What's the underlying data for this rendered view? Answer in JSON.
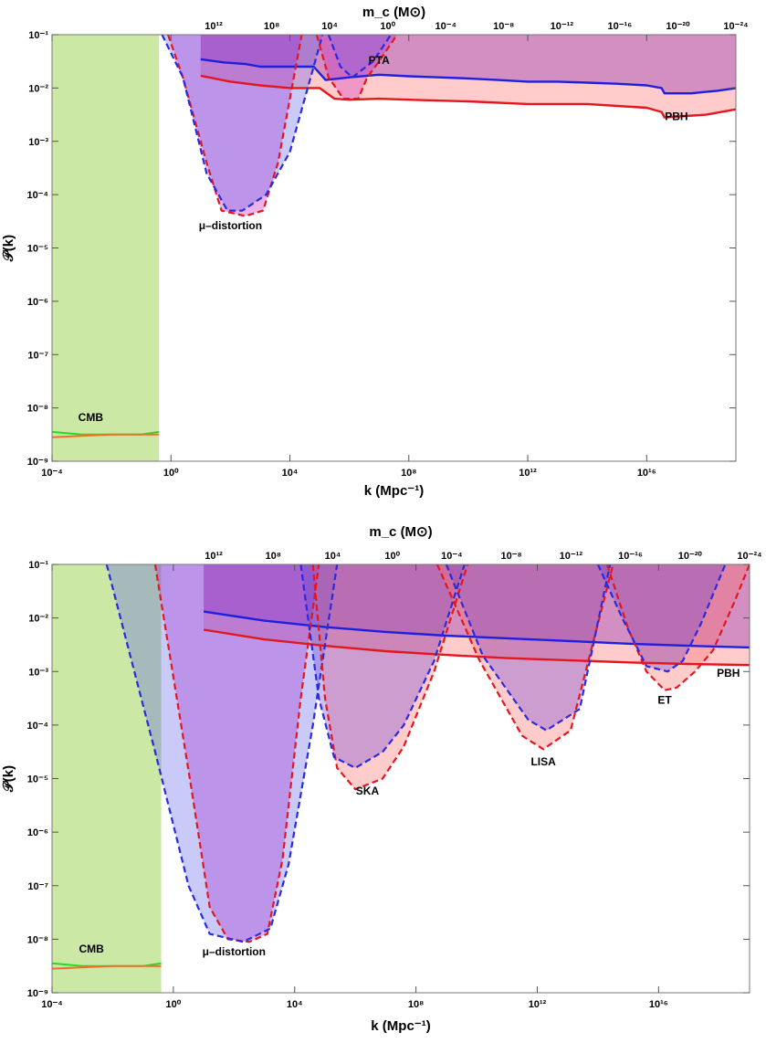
{
  "chart_data": [
    {
      "type": "area",
      "xlabel": "k (Mpc⁻¹)",
      "ylabel": "𝒫(k)",
      "top_xlabel": "m_c (M⊙)",
      "xscale": "log",
      "yscale": "log",
      "xlim": [
        -4,
        19
      ],
      "ylim": [
        -9,
        -1
      ],
      "x_ticks": [
        "10⁻⁴",
        "10⁰",
        "10⁴",
        "10⁸",
        "10¹²",
        "10¹⁶"
      ],
      "y_ticks": [
        "10⁻⁹",
        "10⁻⁸",
        "10⁻⁷",
        "10⁻⁶",
        "10⁻⁵",
        "10⁻⁴",
        "10⁻³",
        "10⁻²",
        "10⁻¹"
      ],
      "top_ticks": [
        "10¹²",
        "10⁸",
        "10⁴",
        "10⁰",
        "10⁻⁴",
        "10⁻⁸",
        "10⁻¹²",
        "10⁻¹⁶",
        "10⁻²⁰",
        "10⁻²⁴"
      ],
      "annotations": [
        "CMB",
        "μ–distortion",
        "PTA",
        "PBH"
      ],
      "cmb_region_log10k": [
        -4,
        -0.4
      ],
      "series": [
        {
          "role": "blue_pbh",
          "x": [
            1,
            1.8,
            2.5,
            3,
            3.6,
            4.8,
            5.2,
            6,
            7,
            8,
            9,
            10,
            11,
            12,
            13,
            14,
            15,
            16,
            16.5,
            16.6,
            17.5,
            18.4,
            19
          ],
          "y": [
            -1.46,
            -1.52,
            -1.55,
            -1.6,
            -1.6,
            -1.6,
            -1.85,
            -1.8,
            -1.75,
            -1.78,
            -1.8,
            -1.82,
            -1.85,
            -1.88,
            -1.88,
            -1.9,
            -1.92,
            -1.95,
            -2.0,
            -2.1,
            -2.1,
            -2.05,
            -2.0
          ]
        },
        {
          "role": "red_pbh",
          "x": [
            1,
            2,
            3,
            4,
            5,
            5.5,
            6,
            7,
            8,
            10,
            12,
            14,
            16,
            16.5,
            16.6,
            18,
            19
          ],
          "y": [
            -1.77,
            -1.88,
            -1.95,
            -2.0,
            -2.0,
            -2.2,
            -2.22,
            -2.2,
            -2.22,
            -2.25,
            -2.3,
            -2.3,
            -2.37,
            -2.45,
            -2.55,
            -2.5,
            -2.4
          ]
        },
        {
          "role": "mu_red",
          "x": [
            -0.1,
            0.4,
            1.2,
            1.7,
            2.5,
            3.1,
            3.6,
            4.4
          ],
          "y": [
            -1,
            -1.8,
            -3.4,
            -4.3,
            -4.4,
            -4.3,
            -3.4,
            -1
          ]
        },
        {
          "role": "mu_blue",
          "x": [
            -0.3,
            0.4,
            1.2,
            1.9,
            2.4,
            3.2,
            4.0,
            5.1
          ],
          "y": [
            -1,
            -1.8,
            -3.6,
            -4.3,
            -4.3,
            -4.0,
            -3.2,
            -1
          ]
        },
        {
          "role": "pta_red",
          "x": [
            4.9,
            5.3,
            5.8,
            6.3,
            6.6,
            7.0,
            7.6
          ],
          "y": [
            -1,
            -1.8,
            -2.2,
            -2.2,
            -1.8,
            -1.5,
            -1
          ]
        },
        {
          "role": "pta_blue",
          "x": [
            5.3,
            5.7,
            6.1,
            6.8,
            7.4
          ],
          "y": [
            -1,
            -1.6,
            -1.8,
            -1.5,
            -1
          ]
        },
        {
          "role": "cmb_green",
          "x": [
            -4,
            -3,
            -2,
            -1,
            -0.4
          ],
          "y": [
            -8.45,
            -8.5,
            -8.5,
            -8.5,
            -8.45
          ]
        },
        {
          "role": "cmb_orange",
          "x": [
            -4,
            -2,
            -0.4
          ],
          "y": [
            -8.55,
            -8.5,
            -8.5
          ]
        }
      ]
    },
    {
      "type": "area",
      "xlabel": "k (Mpc⁻¹)",
      "ylabel": "𝒫(k)",
      "top_xlabel": "m_c (M⊙)",
      "xscale": "log",
      "yscale": "log",
      "xlim": [
        -4,
        19
      ],
      "ylim": [
        -9,
        -1
      ],
      "x_ticks": [
        "10⁻⁴",
        "10⁰",
        "10⁴",
        "10⁸",
        "10¹²",
        "10¹⁶"
      ],
      "y_ticks": [
        "10⁻⁹",
        "10⁻⁸",
        "10⁻⁷",
        "10⁻⁶",
        "10⁻⁵",
        "10⁻⁴",
        "10⁻³",
        "10⁻²",
        "10⁻¹"
      ],
      "top_ticks": [
        "10¹²",
        "10⁸",
        "10⁴",
        "10⁰",
        "10⁻⁴",
        "10⁻⁸",
        "10⁻¹²",
        "10⁻¹⁶",
        "10⁻²⁰",
        "10⁻²⁴"
      ],
      "annotations": [
        "CMB",
        "μ–distortion",
        "SKA",
        "LISA",
        "ET",
        "PBH"
      ],
      "cmb_region_log10k": [
        -4,
        -0.4
      ],
      "series": [
        {
          "role": "blue_pbh",
          "x": [
            1,
            3,
            5,
            7,
            9,
            11,
            13,
            15,
            17,
            19
          ],
          "y": [
            -1.88,
            -2.05,
            -2.17,
            -2.26,
            -2.33,
            -2.38,
            -2.43,
            -2.48,
            -2.52,
            -2.55
          ]
        },
        {
          "role": "red_pbh",
          "x": [
            1,
            3,
            5,
            7,
            9,
            11,
            13,
            15,
            17,
            19
          ],
          "y": [
            -2.22,
            -2.4,
            -2.52,
            -2.62,
            -2.69,
            -2.75,
            -2.79,
            -2.83,
            -2.86,
            -2.88
          ]
        },
        {
          "role": "mu_red",
          "x": [
            -0.6,
            0.6,
            1.2,
            1.8,
            2.5,
            3.1,
            3.6,
            4.2,
            4.8
          ],
          "y": [
            -1,
            -5.2,
            -7.4,
            -8.0,
            -8.05,
            -7.9,
            -6.5,
            -3.5,
            -1
          ]
        },
        {
          "role": "mu_blue",
          "x": [
            -2.2,
            -0.6,
            0.5,
            1.2,
            2.3,
            3.2,
            3.8,
            4.6,
            5.4
          ],
          "y": [
            -1,
            -4.5,
            -7.0,
            -7.9,
            -8.05,
            -7.8,
            -6.6,
            -4.0,
            -1
          ]
        },
        {
          "role": "ska_red",
          "x": [
            4.6,
            5.0,
            5.4,
            6.0,
            6.9,
            7.6,
            8.6,
            9.7
          ],
          "y": [
            -1,
            -3.5,
            -4.8,
            -5.2,
            -5.0,
            -4.4,
            -3.0,
            -1
          ]
        },
        {
          "role": "ska_blue",
          "x": [
            4.2,
            4.8,
            5.3,
            6.0,
            6.9,
            7.6,
            8.6,
            9.6
          ],
          "y": [
            -1,
            -3.5,
            -4.6,
            -4.8,
            -4.5,
            -4.0,
            -2.8,
            -1
          ]
        },
        {
          "role": "lisa_red",
          "x": [
            8.7,
            10.1,
            11.5,
            12.2,
            13.1,
            14.5
          ],
          "y": [
            -1,
            -2.8,
            -4.2,
            -4.45,
            -4.1,
            -1
          ]
        },
        {
          "role": "lisa_blue",
          "x": [
            9.0,
            10.2,
            11.7,
            12.3,
            13.4,
            14.4
          ],
          "y": [
            -1,
            -2.7,
            -3.9,
            -4.1,
            -3.7,
            -1
          ]
        },
        {
          "role": "et_red",
          "x": [
            14.3,
            15.0,
            15.6,
            16.2,
            16.6,
            17.2,
            17.8,
            18.5,
            19
          ],
          "y": [
            -1,
            -2.2,
            -3.0,
            -3.35,
            -3.3,
            -3.0,
            -2.6,
            -1.7,
            -1
          ]
        },
        {
          "role": "et_blue",
          "x": [
            14.0,
            14.8,
            15.6,
            16.3,
            16.8,
            17.4,
            18.2
          ],
          "y": [
            -1,
            -2.0,
            -2.9,
            -3.0,
            -2.8,
            -2.1,
            -1
          ]
        },
        {
          "role": "cmb_green",
          "x": [
            -4,
            -3,
            -2,
            -1,
            -0.4
          ],
          "y": [
            -8.45,
            -8.5,
            -8.5,
            -8.5,
            -8.45
          ]
        },
        {
          "role": "cmb_orange",
          "x": [
            -4,
            -2,
            -0.4
          ],
          "y": [
            -8.55,
            -8.5,
            -8.5
          ]
        }
      ]
    }
  ]
}
